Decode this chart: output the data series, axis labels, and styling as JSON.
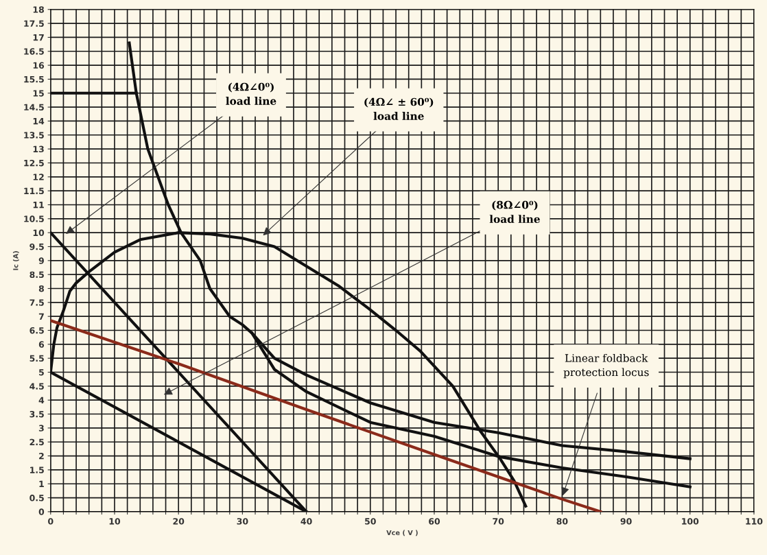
{
  "chart_data": {
    "type": "line",
    "xlabel": "Vce ( V )",
    "ylabel": "Ic (A)",
    "xlim": [
      0,
      110
    ],
    "ylim": [
      0,
      18
    ],
    "xticks": [
      0,
      {
        "value": 2,
        "label": null
      },
      {
        "value": 4,
        "label": null
      },
      {
        "value": 6,
        "label": null
      },
      {
        "value": 8,
        "label": null
      },
      10,
      {
        "value": 12,
        "label": null
      },
      {
        "value": 14,
        "label": null
      },
      {
        "value": 16,
        "label": null
      },
      {
        "value": 18,
        "label": null
      },
      20,
      {
        "value": 22,
        "label": null
      },
      {
        "value": 24,
        "label": null
      },
      {
        "value": 26,
        "label": null
      },
      {
        "value": 28,
        "label": null
      },
      30,
      {
        "value": 32,
        "label": null
      },
      {
        "value": 34,
        "label": null
      },
      {
        "value": 36,
        "label": null
      },
      {
        "value": 38,
        "label": null
      },
      40,
      {
        "value": 42,
        "label": null
      },
      {
        "value": 44,
        "label": null
      },
      {
        "value": 46,
        "label": null
      },
      {
        "value": 48,
        "label": null
      },
      50,
      {
        "value": 52,
        "label": null
      },
      {
        "value": 54,
        "label": null
      },
      {
        "value": 56,
        "label": null
      },
      {
        "value": 58,
        "label": null
      },
      60,
      {
        "value": 62,
        "label": null
      },
      {
        "value": 64,
        "label": null
      },
      {
        "value": 66,
        "label": null
      },
      {
        "value": 68,
        "label": null
      },
      70,
      {
        "value": 72,
        "label": null
      },
      {
        "value": 74,
        "label": null
      },
      {
        "value": 76,
        "label": null
      },
      {
        "value": 78,
        "label": null
      },
      80,
      {
        "value": 82,
        "label": null
      },
      {
        "value": 84,
        "label": null
      },
      {
        "value": 86,
        "label": null
      },
      {
        "value": 88,
        "label": null
      },
      90,
      {
        "value": 92,
        "label": null
      },
      {
        "value": 94,
        "label": null
      },
      {
        "value": 96,
        "label": null
      },
      {
        "value": 98,
        "label": null
      },
      100,
      {
        "value": 102,
        "label": null
      },
      {
        "value": 104,
        "label": null
      },
      {
        "value": 106,
        "label": null
      },
      {
        "value": 108,
        "label": null
      },
      110
    ],
    "yticks": [
      0,
      0.5,
      1,
      1.5,
      2,
      2.5,
      3,
      3.5,
      4,
      4.5,
      5,
      5.5,
      6,
      6.5,
      7,
      7.5,
      8,
      8.5,
      9,
      9.5,
      10,
      10.5,
      11,
      11.5,
      12,
      12.5,
      13,
      13.5,
      14,
      14.5,
      15,
      15.5,
      16,
      16.5,
      17,
      17.5,
      18
    ],
    "grid": true,
    "legend": false,
    "marker": "none",
    "line_style": "solid",
    "series": [
      {
        "color": "#111111",
        "x": [
          0,
          40
        ],
        "values": [
          10,
          0
        ]
      },
      {
        "color": "#111111",
        "x": [
          0,
          40
        ],
        "values": [
          5,
          0
        ]
      },
      {
        "color": "#111111",
        "x": [
          0,
          0.5,
          1,
          2,
          3,
          4,
          6,
          10,
          14,
          20,
          25,
          30,
          35,
          40,
          45,
          49.8,
          54,
          57.8,
          62.9,
          67.3,
          70.3,
          72.5,
          74.3
        ],
        "values": [
          5,
          6,
          6.6,
          7.2,
          7.9,
          8.2,
          8.6,
          9.3,
          9.75,
          10,
          9.95,
          9.8,
          9.5,
          8.8,
          8.1,
          7.27,
          6.5,
          5.76,
          4.5,
          2.86,
          1.9,
          1.1,
          0.2
        ]
      },
      {
        "color": "#111111",
        "x": [
          0,
          13.4
        ],
        "values": [
          15,
          15
        ]
      },
      {
        "color": "#111111",
        "x": [
          12.3,
          13.4,
          15.2,
          18.4,
          20.4,
          23.4,
          24.9,
          28,
          30,
          31.5,
          35,
          40,
          50,
          60,
          70,
          80,
          90,
          100
        ],
        "values": [
          16.8,
          15,
          13,
          11,
          10,
          9,
          8,
          7,
          6.7,
          6.4,
          5.5,
          4.9,
          3.9,
          3.2,
          2.83,
          2.37,
          2.15,
          1.9
        ]
      },
      {
        "color": "#111111",
        "x": [
          31.5,
          35,
          40,
          50,
          60,
          70,
          80,
          90,
          100
        ],
        "values": [
          6.4,
          5.1,
          4.3,
          3.2,
          2.7,
          1.98,
          1.57,
          1.25,
          0.89
        ]
      },
      {
        "color": "#8b2a1a",
        "x": [
          0,
          20,
          40,
          60,
          80,
          86
        ],
        "values": [
          6.85,
          5.3,
          3.66,
          2.05,
          0.45,
          0
        ]
      }
    ],
    "annotations": [
      "(4Ω∠0⁰)\nload line",
      "(4Ω∠ ± 60⁰)\nload line",
      "(8Ω∠0⁰)\nload line",
      "Linear foldback\nprotection locus"
    ]
  }
}
